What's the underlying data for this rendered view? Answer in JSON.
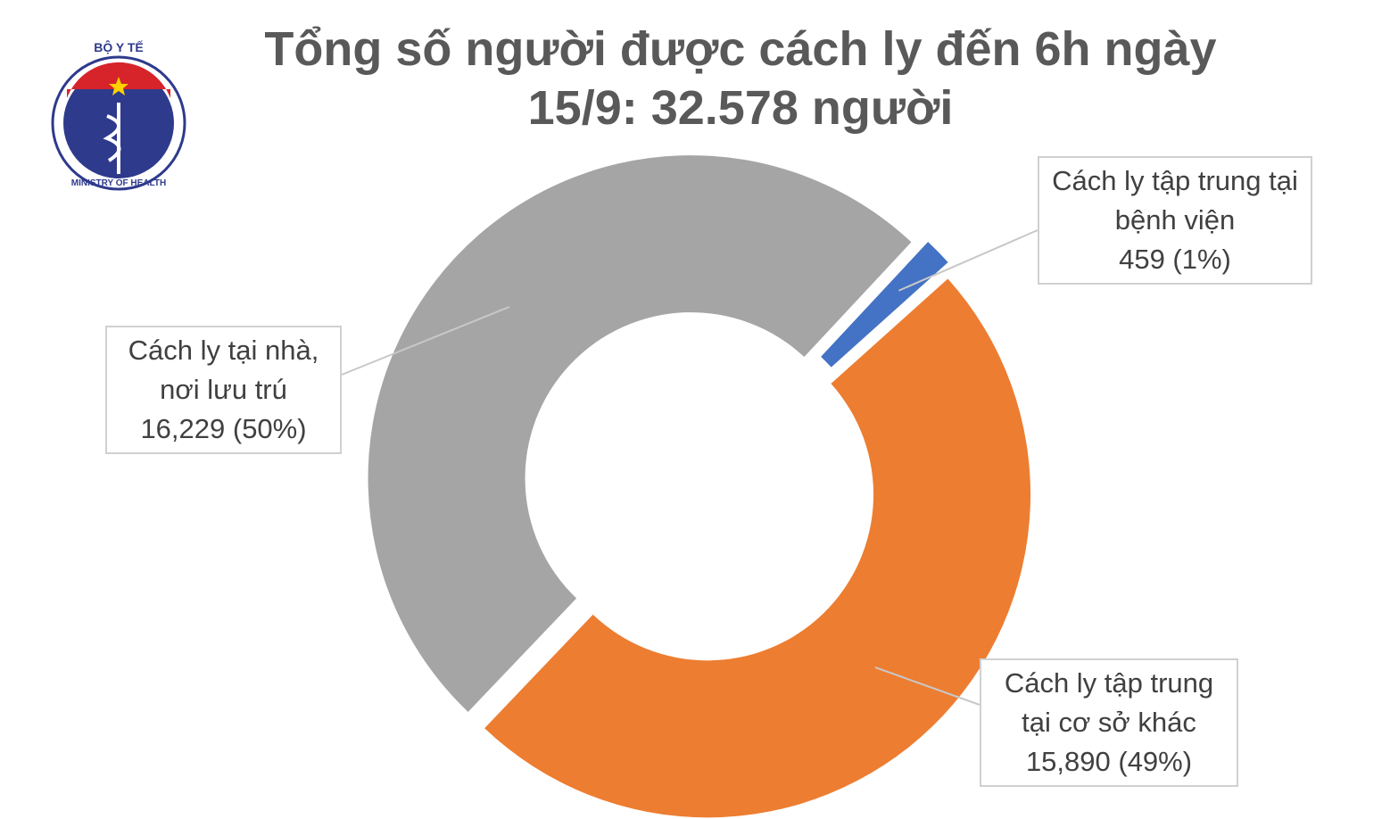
{
  "logo": {
    "top": "BỘ Y TẾ",
    "bottom": "MINISTRY OF HEALTH"
  },
  "chart_data": {
    "type": "donut",
    "title": "Tổng số người được cách ly đến 6h ngày 15/9: 32.578 người",
    "categories": [
      "Cách ly tập trung tại bệnh viện",
      "Cách ly tập trung tại cơ sở khác",
      "Cách ly tại nhà, nơi lưu trú"
    ],
    "values": [
      459,
      15890,
      16229
    ],
    "value_labels": [
      "459 (1%)",
      "15,890 (49%)",
      "16,229 (50%)"
    ],
    "colors": [
      "#4472c4",
      "#ed7d31",
      "#a5a5a5"
    ]
  }
}
